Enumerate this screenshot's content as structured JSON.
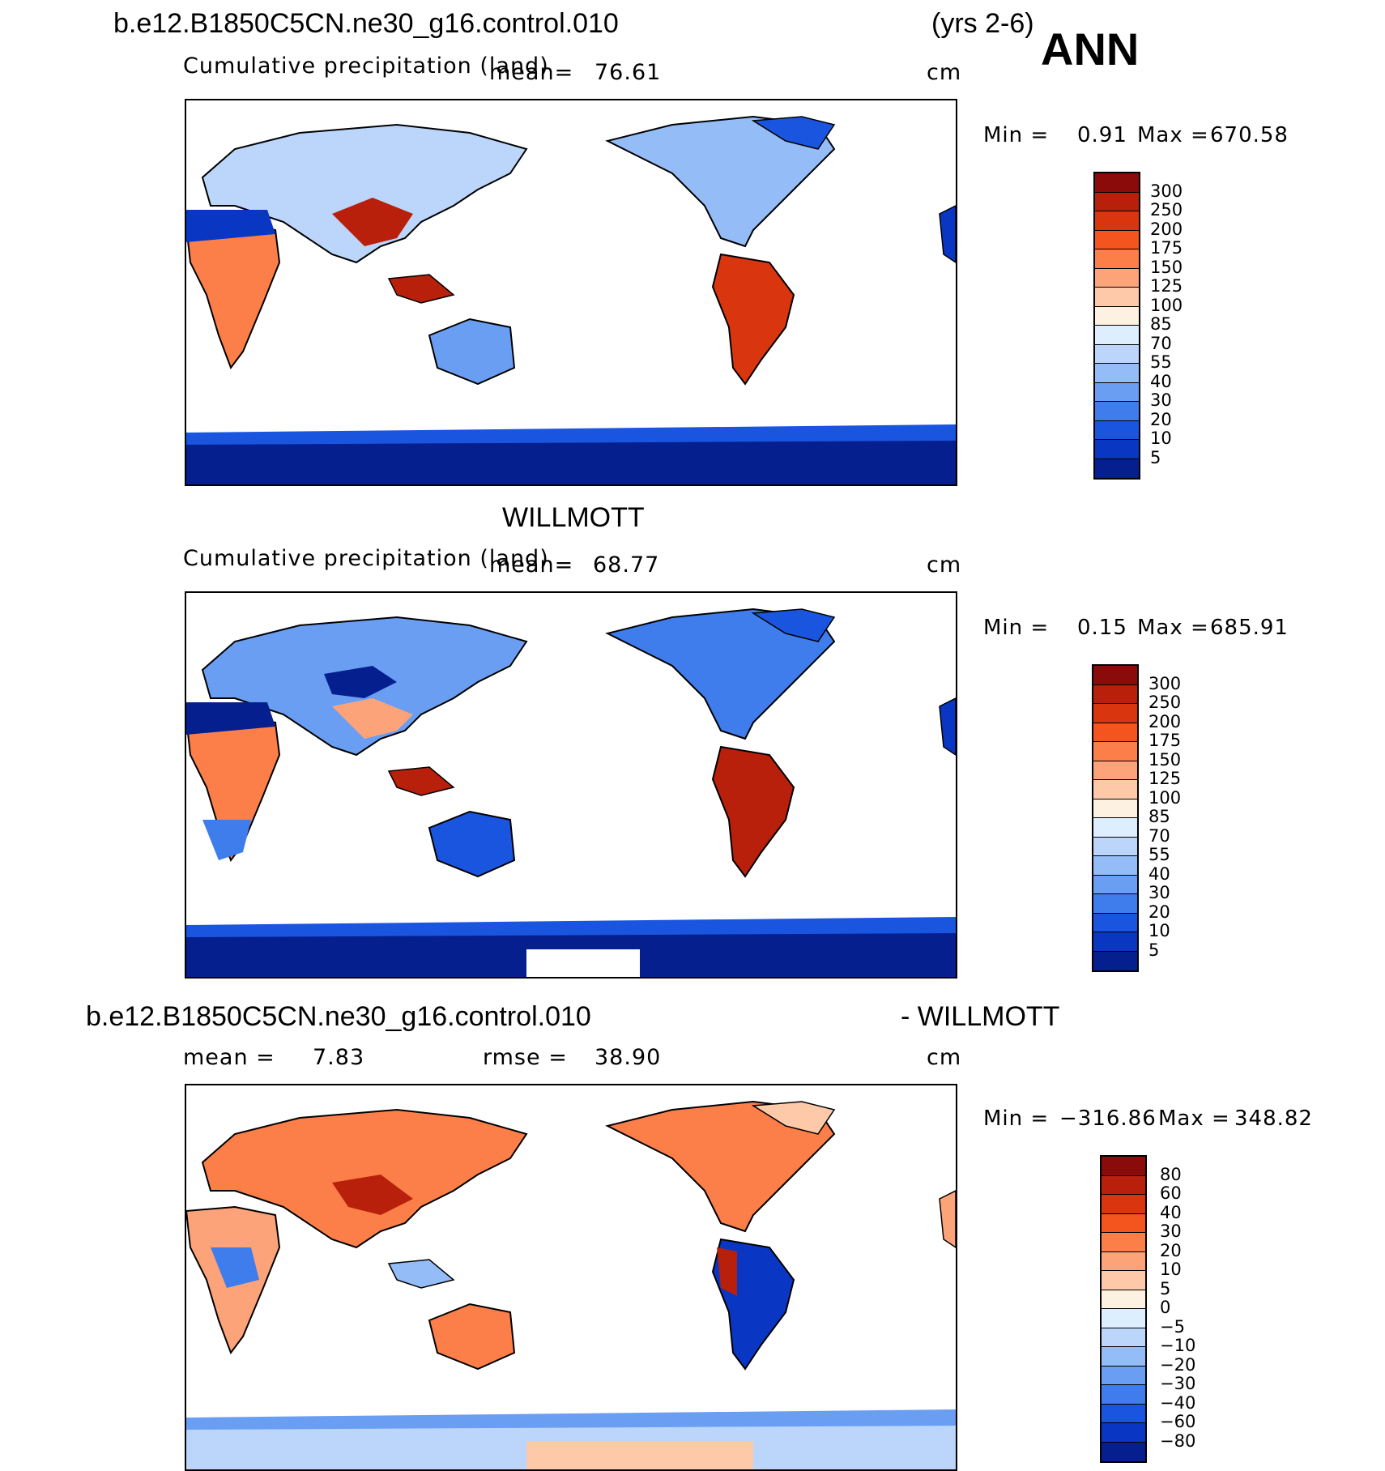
{
  "header": {
    "case_name": "b.e12.B1850C5CN.ne30_g16.control.010",
    "years": "(yrs 2-6)",
    "season": "ANN"
  },
  "panels": [
    {
      "title": "",
      "subtitle": "Cumulative precipitation (land)",
      "mean_label": "mean=",
      "mean_value": "76.61",
      "units": "cm",
      "min_label": "Min =",
      "min_value": "0.91",
      "max_label": "Max =",
      "max_value": "670.58",
      "colorbar_labels": [
        "300",
        "250",
        "200",
        "175",
        "150",
        "125",
        "100",
        "85",
        "70",
        "55",
        "40",
        "30",
        "20",
        "10",
        "5"
      ],
      "colorbar_colors": [
        "#8b0a0a",
        "#b8200c",
        "#d9360f",
        "#f4541e",
        "#fc7f4a",
        "#fda37a",
        "#fdc9a9",
        "#fdf1e2",
        "#dceeff",
        "#bcd6fb",
        "#94bdf8",
        "#6a9ef3",
        "#3f7cec",
        "#1a55e0",
        "#0937c4",
        "#051f8f"
      ]
    },
    {
      "title": "WILLMOTT",
      "subtitle": "Cumulative precipitation (land)",
      "mean_label": "mean=",
      "mean_value": "68.77",
      "units": "cm",
      "min_label": "Min =",
      "min_value": "0.15",
      "max_label": "Max =",
      "max_value": "685.91",
      "colorbar_labels": [
        "300",
        "250",
        "200",
        "175",
        "150",
        "125",
        "100",
        "85",
        "70",
        "55",
        "40",
        "30",
        "20",
        "10",
        "5"
      ],
      "colorbar_colors": [
        "#8b0a0a",
        "#b8200c",
        "#d9360f",
        "#f4541e",
        "#fc7f4a",
        "#fda37a",
        "#fdc9a9",
        "#fdf1e2",
        "#dceeff",
        "#bcd6fb",
        "#94bdf8",
        "#6a9ef3",
        "#3f7cec",
        "#1a55e0",
        "#0937c4",
        "#051f8f"
      ]
    },
    {
      "title_left": "b.e12.B1850C5CN.ne30_g16.control.010",
      "title_right": "- WILLMOTT",
      "mean_label": "mean =",
      "mean_value": "7.83",
      "rmse_label": "rmse =",
      "rmse_value": "38.90",
      "units": "cm",
      "min_label": "Min =",
      "min_value": "−316.86",
      "max_label": "Max =",
      "max_value": "348.82",
      "colorbar_labels": [
        "80",
        "60",
        "40",
        "30",
        "20",
        "10",
        "5",
        "0",
        "−5",
        "−10",
        "−20",
        "−30",
        "−40",
        "−60",
        "−80"
      ],
      "colorbar_colors": [
        "#8b0a0a",
        "#b8200c",
        "#d9360f",
        "#f4541e",
        "#fc7f4a",
        "#fda37a",
        "#fdc9a9",
        "#fdf1e2",
        "#dceeff",
        "#bcd6fb",
        "#94bdf8",
        "#6a9ef3",
        "#3f7cec",
        "#1a55e0",
        "#0937c4",
        "#051f8f"
      ]
    }
  ]
}
